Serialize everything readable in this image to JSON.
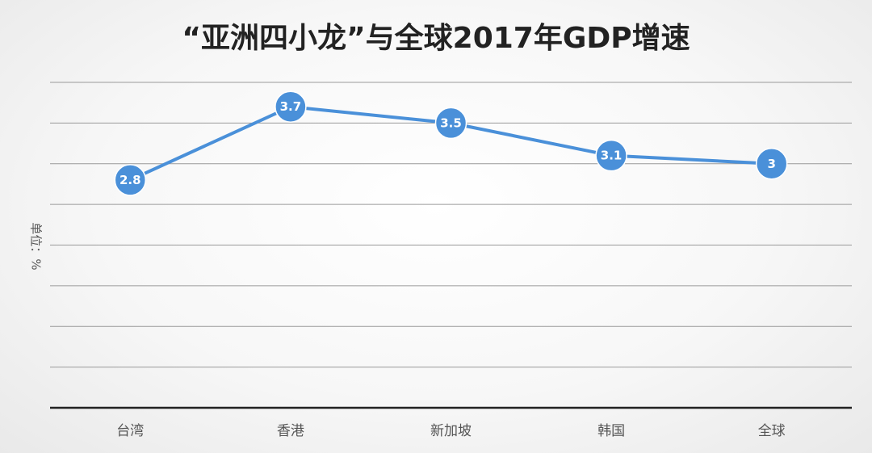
{
  "chart_data": {
    "type": "line",
    "title": "“亚洲四小龙”与全球2017年GDP增速",
    "ylabel": "单位：%",
    "xlabel": "",
    "categories": [
      "台湾",
      "香港",
      "新加坡",
      "韩国",
      "全球"
    ],
    "series": [
      {
        "values": [
          2.8,
          3.7,
          3.5,
          3.1,
          3
        ]
      }
    ],
    "data_labels": [
      "2.8",
      "3.7",
      "3.5",
      "3.1",
      "3"
    ],
    "ylim": [
      0,
      4
    ],
    "grid": true,
    "legend": "none",
    "line_color": "#4a90d9"
  }
}
